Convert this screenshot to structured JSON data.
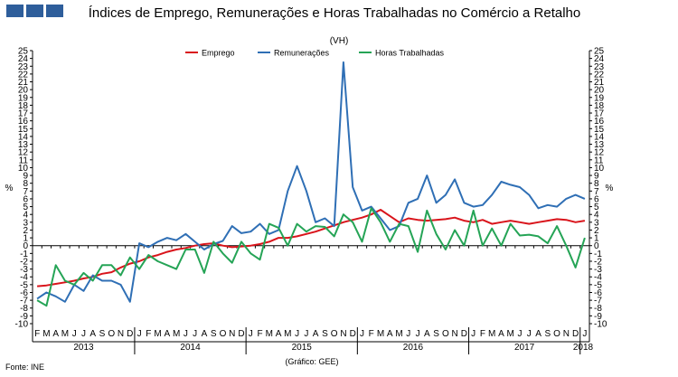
{
  "header": {
    "title": "Índices de Emprego, Remunerações e Horas Trabalhadas no Comércio a Retalho",
    "subtitle": "(VH)"
  },
  "footer": {
    "source": "Fonte: INE",
    "credit": "(Gráfico: GEE)"
  },
  "colors": {
    "emprego": "#d9141b",
    "remuneracoes": "#2f6fb5",
    "horas": "#25a456",
    "brand": "#2e5e9b"
  },
  "chart_data": {
    "type": "line",
    "title": "Índices de Emprego, Remunerações e Horas Trabalhadas no Comércio a Retalho",
    "subtitle": "(VH)",
    "ylabel": "%",
    "ylim": [
      -10,
      25
    ],
    "yticks": [
      -10,
      -9,
      -8,
      -7,
      -6,
      -5,
      -4,
      -3,
      -2,
      -1,
      0,
      1,
      2,
      3,
      4,
      5,
      6,
      7,
      8,
      9,
      10,
      11,
      12,
      13,
      14,
      15,
      16,
      17,
      18,
      19,
      20,
      21,
      22,
      23,
      24,
      25
    ],
    "grid": false,
    "legend": "top-center",
    "month_labels": [
      "F",
      "M",
      "A",
      "M",
      "J",
      "J",
      "A",
      "S",
      "O",
      "N",
      "D",
      "J",
      "F",
      "M",
      "A",
      "M",
      "J",
      "J",
      "A",
      "S",
      "O",
      "N",
      "D",
      "J",
      "F",
      "M",
      "A",
      "M",
      "J",
      "J",
      "A",
      "S",
      "O",
      "N",
      "D",
      "J",
      "F",
      "M",
      "A",
      "M",
      "J",
      "J",
      "A",
      "S",
      "O",
      "N",
      "D",
      "J",
      "F",
      "M",
      "A",
      "M",
      "J",
      "J",
      "A",
      "S",
      "O",
      "N",
      "D",
      "J"
    ],
    "years": [
      "2013",
      "2014",
      "2015",
      "2016",
      "2017",
      "2018"
    ],
    "series": [
      {
        "name": "Emprego",
        "color": "#d9141b",
        "values": [
          -5.2,
          -5.1,
          -4.9,
          -4.7,
          -4.5,
          -4.2,
          -4.0,
          -3.6,
          -3.4,
          -2.8,
          -2.3,
          -2.0,
          -1.5,
          -1.2,
          -0.8,
          -0.5,
          -0.3,
          0.0,
          0.2,
          0.3,
          0.0,
          -0.2,
          -0.1,
          0.0,
          0.2,
          0.5,
          1.0,
          1.0,
          1.2,
          1.5,
          1.8,
          2.2,
          2.6,
          3.0,
          3.3,
          3.6,
          4.0,
          4.6,
          3.8,
          3.0,
          3.5,
          3.3,
          3.2,
          3.3,
          3.4,
          3.6,
          3.2,
          3.0,
          3.3,
          2.8,
          3.0,
          3.2,
          3.0,
          2.8,
          3.0,
          3.2,
          3.4,
          3.3,
          3.0,
          3.2
        ]
      },
      {
        "name": "Remunerações",
        "color": "#2f6fb5",
        "values": [
          -6.8,
          -6.0,
          -6.5,
          -7.2,
          -5.0,
          -5.8,
          -3.8,
          -4.5,
          -4.5,
          -5.0,
          -7.2,
          0.3,
          -0.2,
          0.5,
          1.0,
          0.7,
          1.5,
          0.5,
          -0.5,
          0.2,
          0.6,
          2.5,
          1.6,
          1.8,
          2.8,
          1.5,
          2.0,
          7.0,
          10.2,
          7.0,
          3.0,
          3.5,
          2.5,
          23.5,
          7.5,
          4.5,
          5.0,
          3.5,
          2.0,
          2.5,
          5.5,
          6.0,
          9.0,
          5.5,
          6.5,
          8.5,
          5.5,
          5.0,
          5.2,
          6.5,
          8.2,
          7.8,
          7.5,
          6.5,
          4.8,
          5.2,
          5.0,
          6.0,
          6.5,
          6.0
        ]
      },
      {
        "name": "Horas Trabalhadas",
        "color": "#25a456",
        "values": [
          -7.0,
          -7.7,
          -2.5,
          -4.5,
          -5.0,
          -3.5,
          -4.5,
          -2.5,
          -2.5,
          -3.8,
          -1.5,
          -3.0,
          -1.2,
          -2.0,
          -2.5,
          -3.0,
          -0.5,
          -0.5,
          -3.5,
          0.5,
          -1.0,
          -2.2,
          0.5,
          -1.0,
          -1.8,
          2.8,
          2.3,
          0.0,
          2.8,
          1.8,
          2.5,
          2.4,
          1.2,
          4.0,
          3.0,
          0.5,
          4.8,
          3.0,
          0.5,
          2.8,
          2.5,
          -0.8,
          4.5,
          1.5,
          -0.5,
          2.0,
          0.0,
          4.5,
          0.0,
          2.2,
          0.0,
          2.8,
          1.3,
          1.4,
          1.2,
          0.3,
          2.5,
          0.0,
          -2.8,
          1.0
        ]
      }
    ]
  }
}
